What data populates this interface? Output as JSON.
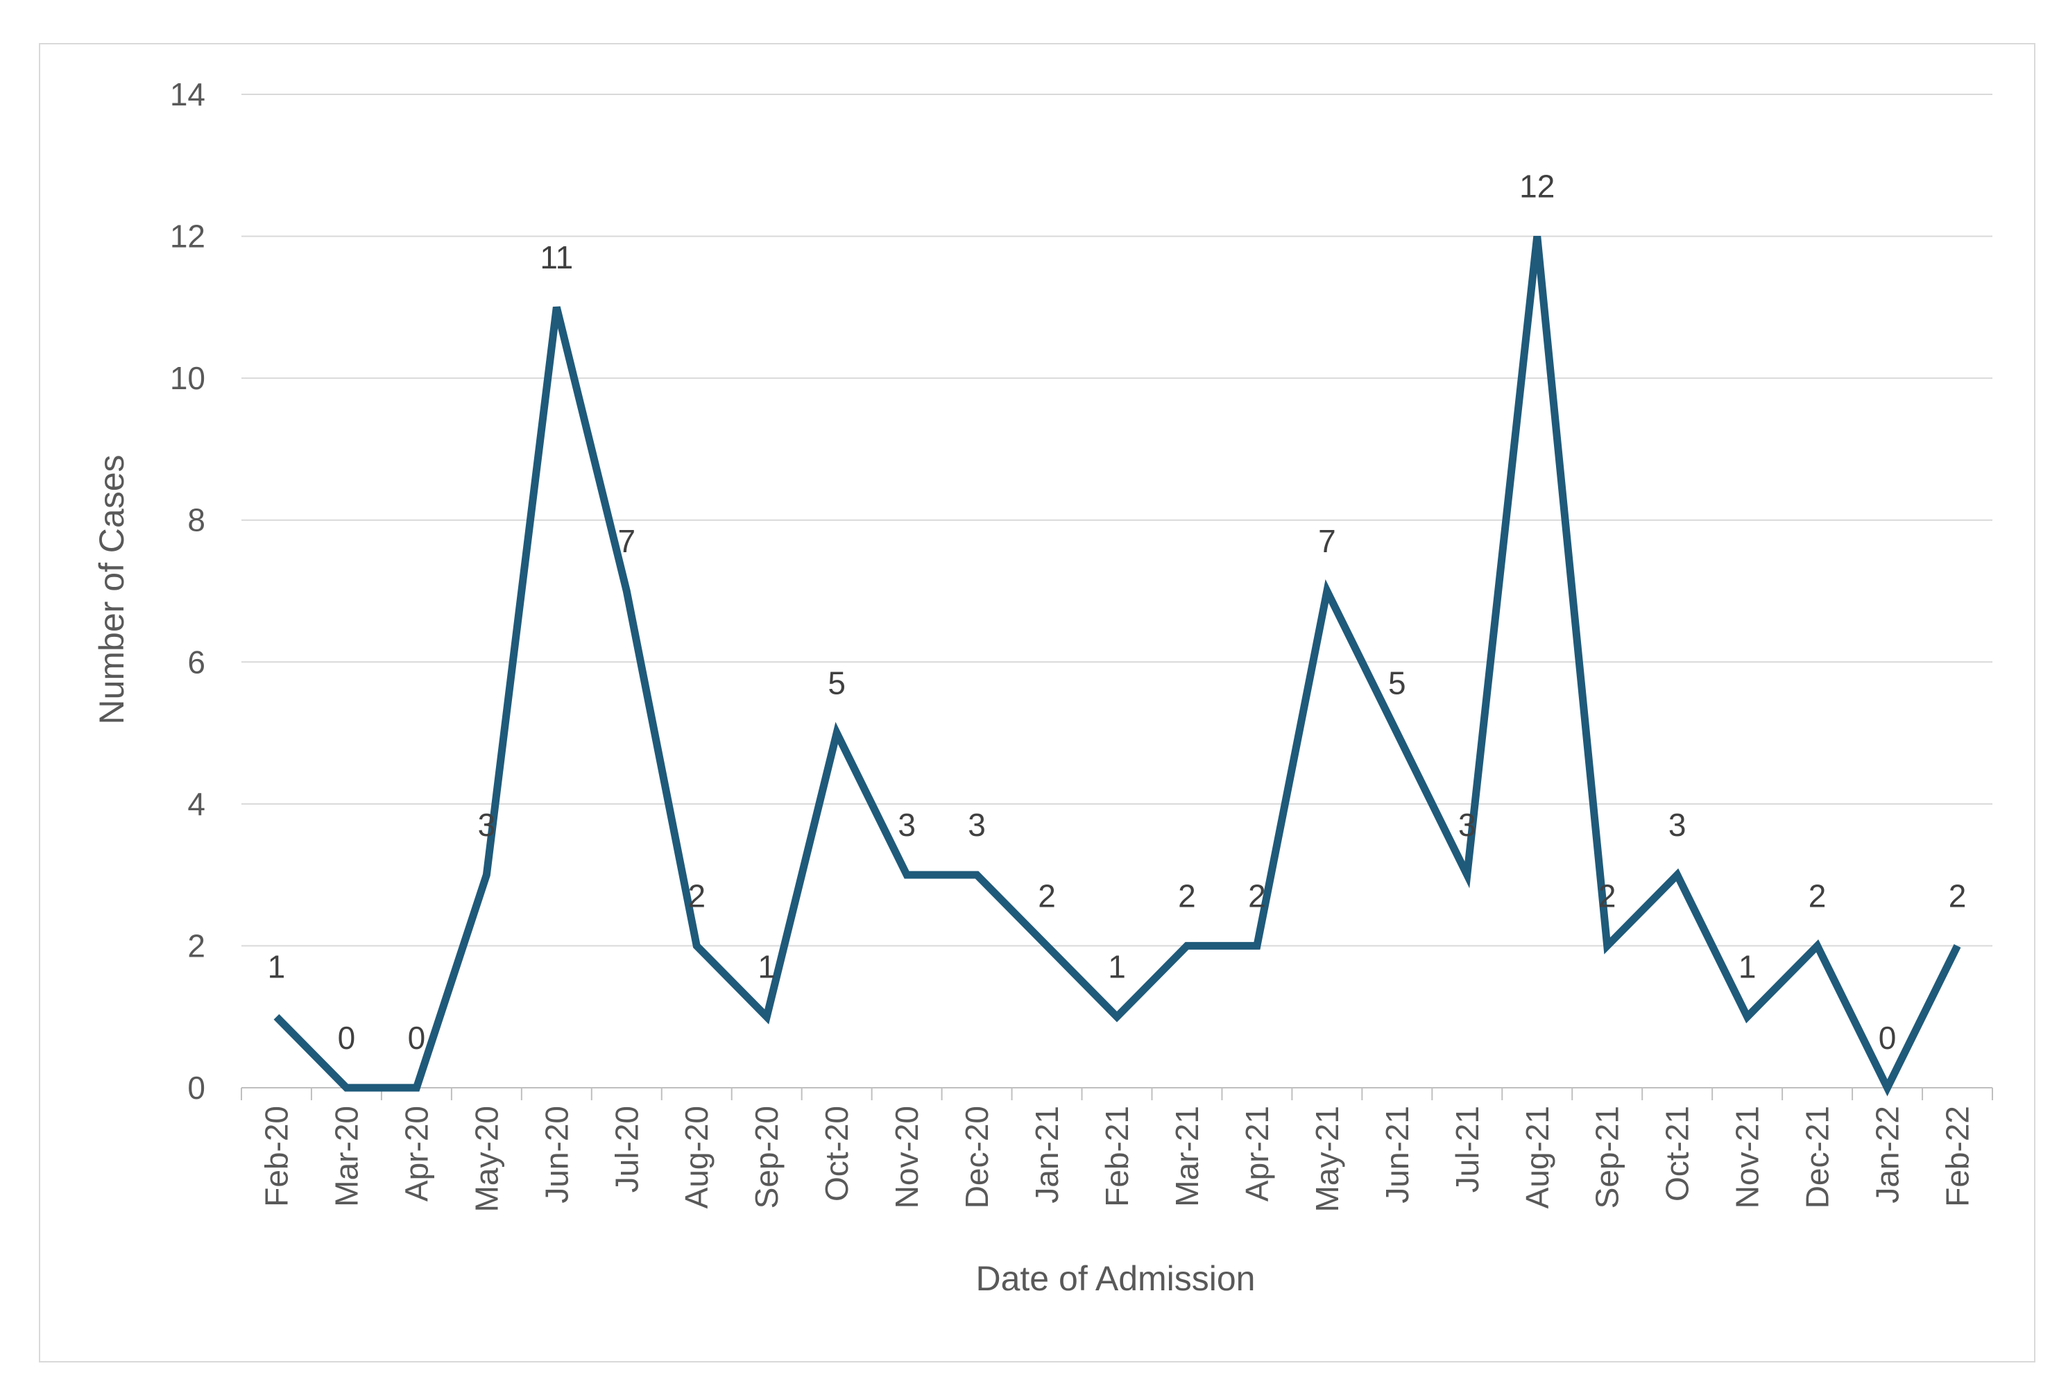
{
  "chart_data": {
    "type": "line",
    "title": "",
    "xlabel": "Date of Admission",
    "ylabel": "Number of Cases",
    "ylim": [
      0,
      14
    ],
    "yticks": [
      0,
      2,
      4,
      6,
      8,
      10,
      12,
      14
    ],
    "grid": true,
    "legend": "none",
    "categories": [
      "Feb-20",
      "Mar-20",
      "Apr-20",
      "May-20",
      "Jun-20",
      "Jul-20",
      "Aug-20",
      "Sep-20",
      "Oct-20",
      "Nov-20",
      "Dec-20",
      "Jan-21",
      "Feb-21",
      "Mar-21",
      "Apr-21",
      "May-21",
      "Jun-21",
      "Jul-21",
      "Aug-21",
      "Sep-21",
      "Oct-21",
      "Nov-21",
      "Dec-21",
      "Jan-22",
      "Feb-22"
    ],
    "series": [
      {
        "name": "Cases",
        "color": "#1f5a7a",
        "values": [
          1,
          0,
          0,
          3,
          11,
          7,
          2,
          1,
          5,
          3,
          3,
          2,
          1,
          2,
          2,
          7,
          5,
          3,
          12,
          2,
          3,
          1,
          2,
          0,
          2
        ]
      }
    ]
  }
}
